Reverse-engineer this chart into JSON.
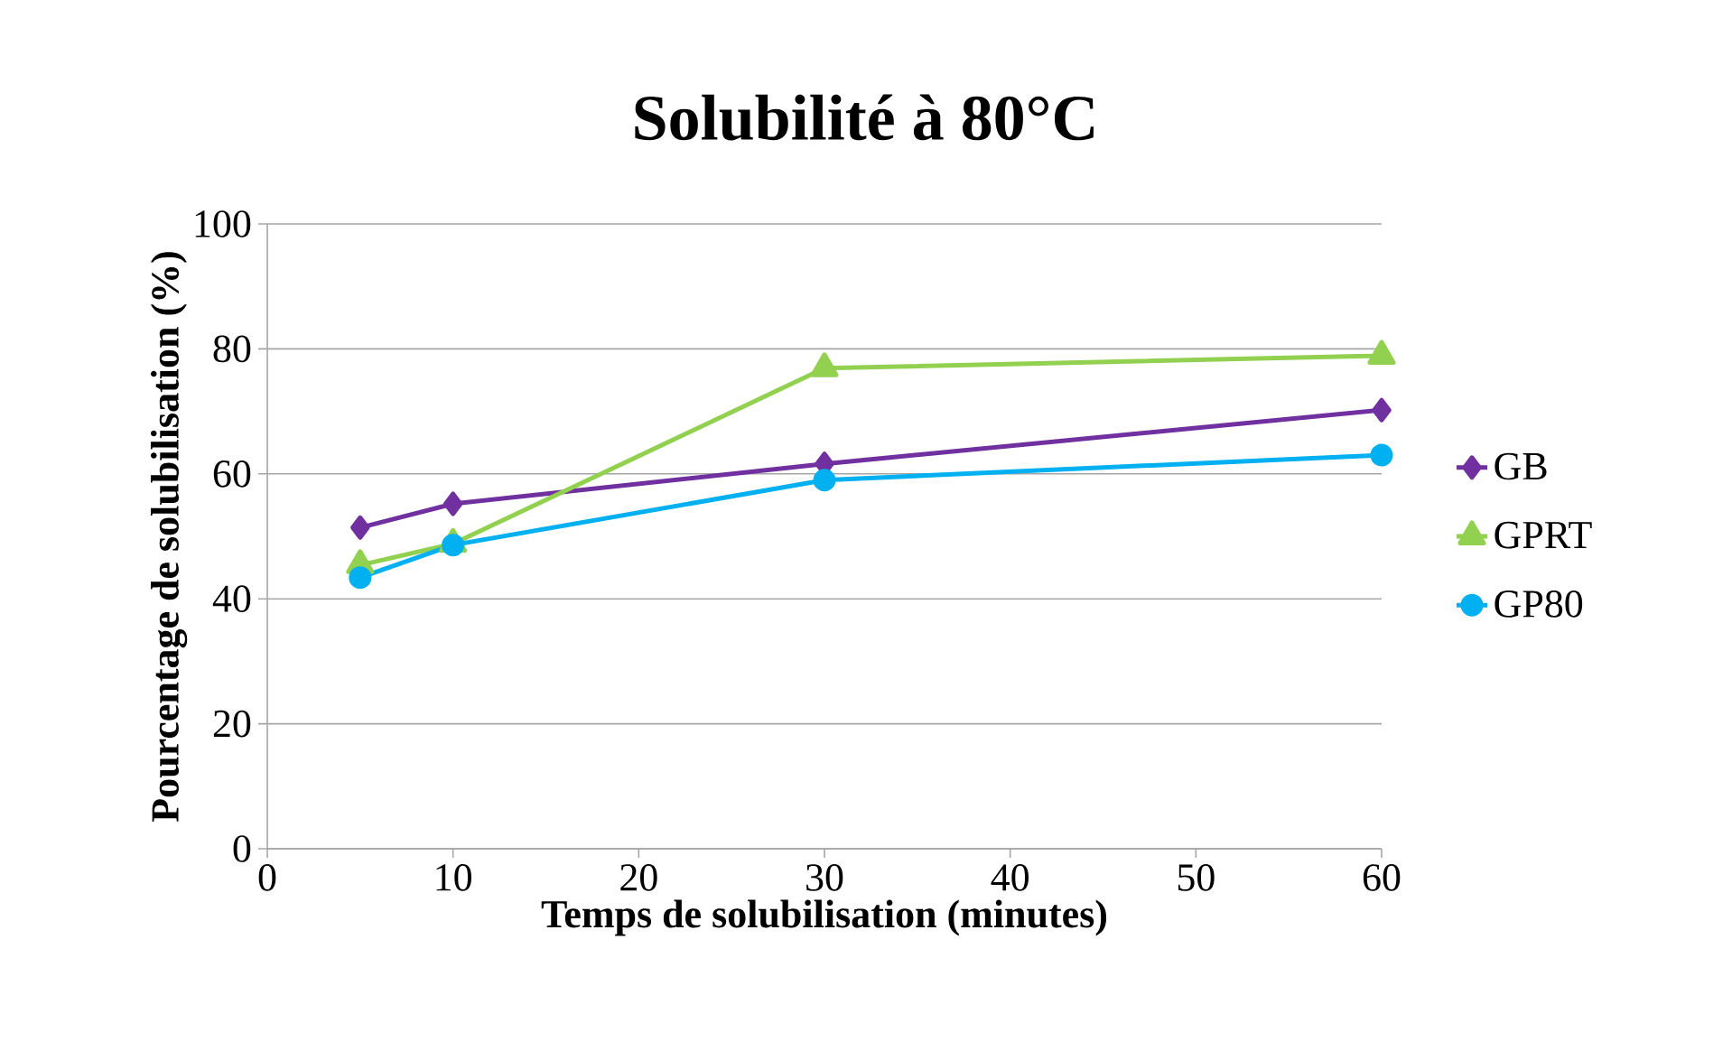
{
  "chart_data": {
    "type": "line",
    "title": "Solubilité à 80°C",
    "xlabel": "Temps de solubilisation (minutes)",
    "ylabel": "Pourcentage de solubilisation (%)",
    "x": [
      5,
      10,
      30,
      60
    ],
    "series": [
      {
        "name": "GB",
        "color": "#7030a0",
        "marker": "diamond",
        "values": [
          51.4,
          55.2,
          61.6,
          70.2
        ]
      },
      {
        "name": "GPRT",
        "color": "#92d050",
        "marker": "triangle",
        "values": [
          45.4,
          48.8,
          76.9,
          78.9
        ]
      },
      {
        "name": "GP80",
        "color": "#00b0f0",
        "marker": "circle",
        "values": [
          43.4,
          48.6,
          59.0,
          63.0
        ]
      }
    ],
    "xlim": [
      0,
      60
    ],
    "xticks": [
      0,
      10,
      20,
      30,
      40,
      50,
      60
    ],
    "ylim": [
      0,
      100
    ],
    "yticks": [
      0,
      20,
      40,
      60,
      80,
      100
    ],
    "grid": "y",
    "legend": "right",
    "line_style": "solid"
  }
}
